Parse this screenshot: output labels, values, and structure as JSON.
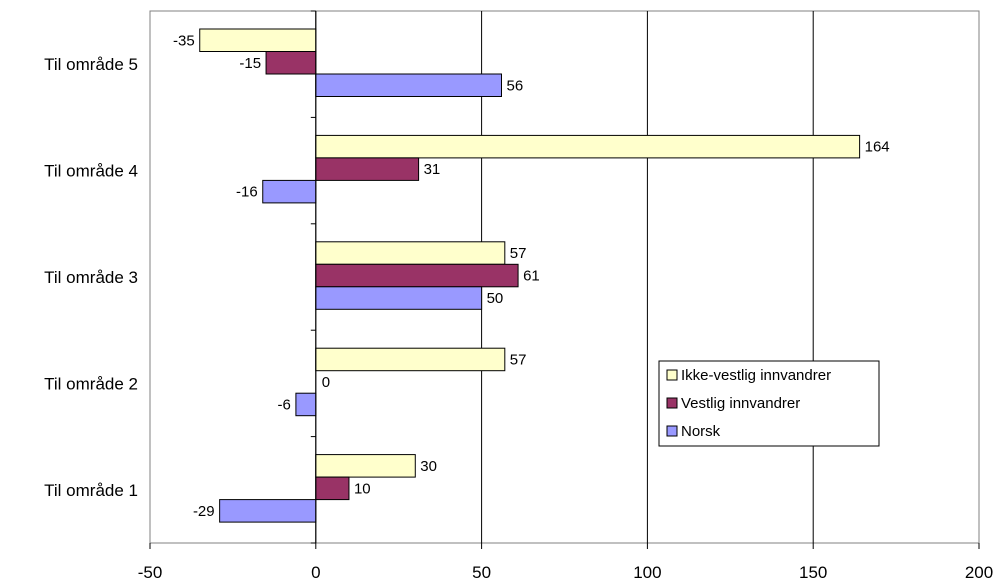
{
  "chart_data": {
    "type": "bar",
    "orientation": "horizontal",
    "categories": [
      "Til område 1",
      "Til område 2",
      "Til område 3",
      "Til område 4",
      "Til område 5"
    ],
    "series": [
      {
        "name": "Ikke-vestlig innvandrer",
        "color": "#ffffcc",
        "values": [
          30,
          57,
          57,
          164,
          -35
        ]
      },
      {
        "name": "Vestlig innvandrer",
        "color": "#993366",
        "values": [
          10,
          0,
          61,
          31,
          -15
        ]
      },
      {
        "name": "Norsk",
        "color": "#9999ff",
        "values": [
          -29,
          -6,
          50,
          -16,
          56
        ]
      }
    ],
    "xlim": [
      -50,
      200
    ],
    "xticks": [
      -50,
      0,
      50,
      100,
      150,
      200
    ],
    "xtick_labels": [
      "-50",
      "0",
      "50",
      "100",
      "150",
      "200"
    ],
    "gridlines": "vertical",
    "legend_position": "right",
    "title": "",
    "xlabel": "",
    "ylabel": ""
  }
}
